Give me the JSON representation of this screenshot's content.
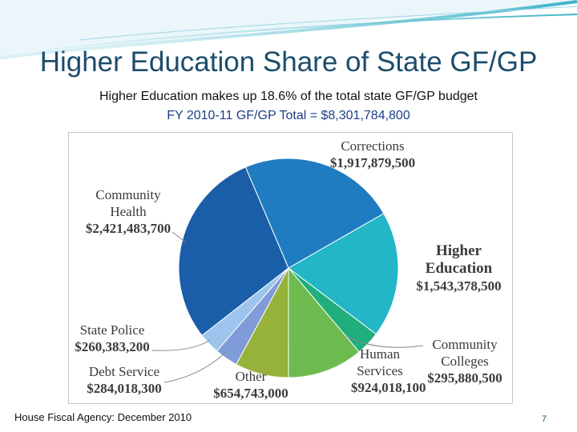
{
  "chart_data": {
    "type": "pie",
    "title": "Higher Education Share of State GF/GP",
    "subtitles": [
      "Higher Education makes up 18.6% of the total state GF/GP budget",
      "FY 2010-11 GF/GP Total = $8,301,784,800"
    ],
    "categories": [
      "Corrections",
      "Higher Education",
      "Community Colleges",
      "Human Services",
      "Other",
      "Debt Service",
      "State Police",
      "Community Health"
    ],
    "values": [
      1917879500,
      1543378500,
      295880500,
      924018100,
      654743000,
      284018300,
      260383200,
      2421483700
    ],
    "value_labels": [
      "$1,917,879,500",
      "$1,543,378,500",
      "$295,880,500",
      "$924,018,100",
      "$654,743,000",
      "$284,018,300",
      "$260,383,200",
      "$2,421,483,700"
    ],
    "colors": [
      "#1f7cc0",
      "#22b6c6",
      "#1fae7c",
      "#6dbb4f",
      "#97b23a",
      "#7f9bd8",
      "#9cc4ec",
      "#1b5ea8"
    ]
  },
  "footer": {
    "source": "House Fiscal Agency: December 2010",
    "page": 7
  }
}
